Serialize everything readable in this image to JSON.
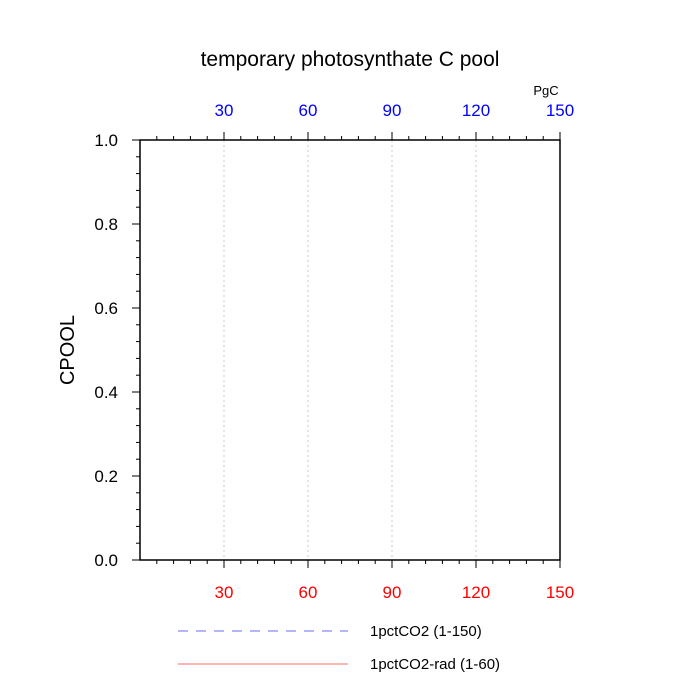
{
  "chart_data": {
    "type": "line",
    "title": "temporary photosynthate C pool",
    "ylabel": "CPOOL",
    "top_axis_unit": "PgC",
    "xlim": [
      0,
      150
    ],
    "ylim": [
      0.0,
      1.0
    ],
    "grid": "vertical dashed at x ticks",
    "bottom_ticks": [
      "30",
      "60",
      "90",
      "120",
      "150"
    ],
    "top_ticks": [
      "30",
      "60",
      "90",
      "120",
      "150"
    ],
    "y_ticks": [
      "0.0",
      "0.2",
      "0.4",
      "0.6",
      "0.8",
      "1.0"
    ],
    "x_tick_values": [
      30,
      60,
      90,
      120,
      150
    ],
    "y_tick_values": [
      0.0,
      0.2,
      0.4,
      0.6,
      0.8,
      1.0
    ],
    "bottom_axis_color": "#ff0000",
    "top_axis_color": "#0000ff",
    "series": [
      {
        "name": "1pctCO2 (1-150)",
        "style": "dashed",
        "color": "#6a6aff",
        "x": [
          0,
          150
        ],
        "y": [
          0.0,
          0.0
        ]
      },
      {
        "name": "1pctCO2-rad (1-60)",
        "style": "solid",
        "color": "#ff6a6a",
        "x": [
          0,
          60
        ],
        "y": [
          0.0,
          0.0
        ]
      }
    ],
    "legend_position": "bottom"
  }
}
